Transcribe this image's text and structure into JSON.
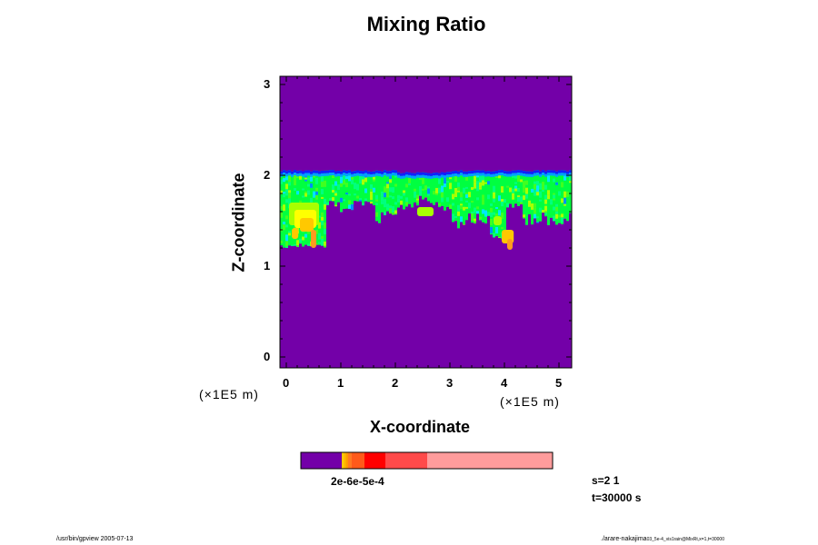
{
  "chart_data": {
    "type": "heatmap",
    "title": "Mixing Ratio",
    "xlabel": "X-coordinate",
    "ylabel": "Z-coordinate",
    "x_unit": "(×1E5 m)",
    "y_unit": "(×1E5 m)",
    "xlim": [
      0,
      5.2
    ],
    "ylim": [
      0,
      3
    ],
    "x_ticks": [
      "0",
      "1",
      "2",
      "3",
      "4",
      "5"
    ],
    "y_ticks": [
      "0",
      "1",
      "2",
      "3"
    ],
    "background_color": "#7300a8",
    "colorbar": {
      "segments": [
        {
          "color": "#7300a8",
          "width": 45
        },
        {
          "color": "#ffc800",
          "width": 3
        },
        {
          "color": "#ffb000",
          "width": 2
        },
        {
          "color": "#ff9a00",
          "width": 2
        },
        {
          "color": "#ff7a22",
          "width": 4
        },
        {
          "color": "#ff5a1a",
          "width": 14
        },
        {
          "color": "#ff0000",
          "width": 23
        },
        {
          "color": "#ff4a4a",
          "width": 46
        },
        {
          "color": "#ff9c9c",
          "width": 138
        }
      ],
      "tick_label": "2e-6e-5e-4"
    },
    "cloud_layer": {
      "top_z": 2.05,
      "bottom_z_range": [
        1.2,
        1.75
      ],
      "colors": [
        "#00ff40",
        "#00ff80",
        "#40ff20",
        "#a8ff00",
        "#00e8ff",
        "#0090ff",
        "#1020ff",
        "#ffff00",
        "#ffc800",
        "#ff9a20"
      ]
    }
  },
  "annotations": {
    "s": "s=2 1",
    "t": "t=30000 s"
  },
  "footer": {
    "left": "/usr/bin/gpview 2005-07-13",
    "right": "./arare-nakajima",
    "right_small": "03_5e-4_vis1rain@MixRt,x=1,t=30000"
  }
}
